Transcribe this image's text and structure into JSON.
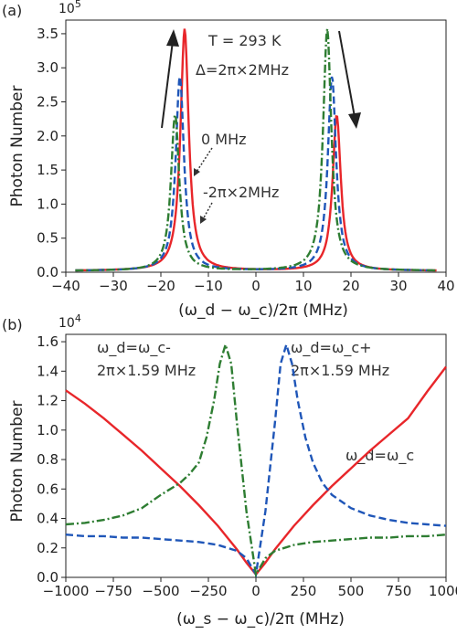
{
  "chart_data": [
    {
      "type": "line",
      "panel_label": "(a)",
      "exponent_label": "10",
      "exponent_power": "5",
      "xlabel": "(ω_d − ω_c)/2π (MHz)",
      "ylabel": "Photon Number",
      "xlim": [
        -40,
        40
      ],
      "ylim": [
        0,
        3.7
      ],
      "xticks": [
        "−40",
        "−30",
        "−20",
        "−10",
        "0",
        "10",
        "20",
        "30",
        "40"
      ],
      "yticks": [
        "0.0",
        "0.5",
        "1.0",
        "1.5",
        "2.0",
        "2.5",
        "3.0",
        "3.5"
      ],
      "annotations": {
        "temperature": "T = 293 K",
        "detuning": "Δ=2π×2MHz",
        "zero": "0 MHz",
        "negative": "-2π×2MHz"
      },
      "series": [
        {
          "color": "#e8262a",
          "dash": "solid",
          "peaks": [
            [
              -15,
              3.55
            ],
            [
              17,
              2.28
            ]
          ],
          "hwhm": 1.05,
          "floor_x": [
            -38,
            38
          ],
          "floor_y": [
            0.02,
            0.02
          ]
        },
        {
          "color": "#1f56b8",
          "dash": "dashed",
          "peaks": [
            [
              -16,
              2.85
            ],
            [
              16,
              2.85
            ]
          ],
          "hwhm": 1.05,
          "floor_x": [
            -38,
            38
          ],
          "floor_y": [
            0.02,
            0.02
          ]
        },
        {
          "color": "#2e7d32",
          "dash": "dashdot",
          "peaks": [
            [
              -17,
              2.3
            ],
            [
              15,
              3.55
            ]
          ],
          "hwhm": 1.05,
          "floor_x": [
            -38,
            38
          ],
          "floor_y": [
            0.02,
            0.02
          ]
        }
      ]
    },
    {
      "type": "line",
      "panel_label": "(b)",
      "exponent_label": "10",
      "exponent_power": "4",
      "xlabel": "(ω_s − ω_c)/2π (MHz)",
      "ylabel": "Photon Number",
      "xlim": [
        -1000,
        1000
      ],
      "ylim": [
        0,
        1.65
      ],
      "xticks": [
        "−1000",
        "−750",
        "−500",
        "−250",
        "0",
        "250",
        "500",
        "750",
        "1000"
      ],
      "yticks": [
        "0.0",
        "0.2",
        "0.4",
        "0.6",
        "0.8",
        "1.0",
        "1.2",
        "1.4",
        "1.6"
      ],
      "annotations": {
        "minus_line1": "ω_d=ω_c-",
        "minus_line2": "2π×1.59 MHz",
        "plus_line1": "ω_d=ω_c+",
        "plus_line2": "2π×1.59 MHz",
        "center": "ω_d=ω_c"
      },
      "series": [
        {
          "color": "#e8262a",
          "dash": "solid",
          "x": [
            -1000,
            -900,
            -800,
            -700,
            -600,
            -500,
            -400,
            -300,
            -200,
            -100,
            -50,
            0,
            50,
            100,
            200,
            300,
            400,
            500,
            600,
            700,
            800,
            900,
            1000
          ],
          "y": [
            1.27,
            1.18,
            1.08,
            0.97,
            0.86,
            0.74,
            0.62,
            0.49,
            0.35,
            0.19,
            0.1,
            0.02,
            0.1,
            0.19,
            0.35,
            0.49,
            0.62,
            0.74,
            0.86,
            0.97,
            1.08,
            1.26,
            1.43
          ]
        },
        {
          "color": "#1f56b8",
          "dash": "dashed",
          "x": [
            -1000,
            -900,
            -800,
            -700,
            -600,
            -500,
            -400,
            -300,
            -200,
            -100,
            -50,
            0,
            50,
            100,
            130,
            160,
            190,
            220,
            260,
            300,
            350,
            400,
            500,
            600,
            700,
            800,
            900,
            1000
          ],
          "y": [
            0.29,
            0.28,
            0.28,
            0.27,
            0.27,
            0.26,
            0.25,
            0.24,
            0.22,
            0.18,
            0.13,
            0.02,
            0.45,
            1.05,
            1.45,
            1.58,
            1.45,
            1.2,
            0.95,
            0.78,
            0.64,
            0.56,
            0.47,
            0.42,
            0.39,
            0.37,
            0.36,
            0.35
          ]
        },
        {
          "color": "#2e7d32",
          "dash": "dashdot",
          "x": [
            -1000,
            -900,
            -800,
            -700,
            -600,
            -500,
            -400,
            -350,
            -300,
            -260,
            -220,
            -190,
            -160,
            -130,
            -100,
            -50,
            0,
            50,
            100,
            200,
            300,
            400,
            500,
            600,
            700,
            800,
            900,
            1000
          ],
          "y": [
            0.36,
            0.37,
            0.39,
            0.42,
            0.47,
            0.56,
            0.64,
            0.7,
            0.78,
            0.95,
            1.2,
            1.45,
            1.58,
            1.45,
            1.05,
            0.45,
            0.02,
            0.13,
            0.18,
            0.22,
            0.24,
            0.25,
            0.26,
            0.27,
            0.27,
            0.28,
            0.28,
            0.29
          ]
        }
      ]
    }
  ]
}
